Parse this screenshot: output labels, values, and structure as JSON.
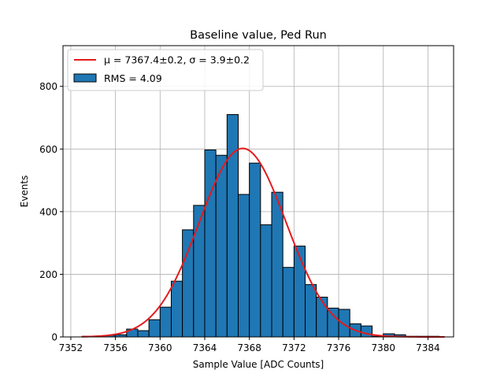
{
  "chart_data": {
    "type": "bar",
    "title": "Baseline value, Ped Run",
    "xlabel": "Sample Value [ADC Counts]",
    "ylabel": "Events",
    "xlim": [
      7351.3,
      7386.3
    ],
    "ylim": [
      0,
      930
    ],
    "grid": true,
    "legend_position": "top-left",
    "xticks": [
      7352,
      7356,
      7360,
      7364,
      7368,
      7372,
      7376,
      7380,
      7384
    ],
    "yticks": [
      0,
      200,
      400,
      600,
      800
    ],
    "bin_width": 1,
    "bins": [
      {
        "x0": 7353,
        "count": 2
      },
      {
        "x0": 7354,
        "count": 2
      },
      {
        "x0": 7355,
        "count": 5
      },
      {
        "x0": 7356,
        "count": 7
      },
      {
        "x0": 7357,
        "count": 25
      },
      {
        "x0": 7358,
        "count": 20
      },
      {
        "x0": 7359,
        "count": 55
      },
      {
        "x0": 7360,
        "count": 95
      },
      {
        "x0": 7361,
        "count": 178
      },
      {
        "x0": 7362,
        "count": 342
      },
      {
        "x0": 7363,
        "count": 420
      },
      {
        "x0": 7364,
        "count": 597
      },
      {
        "x0": 7365,
        "count": 580
      },
      {
        "x0": 7366,
        "count": 710
      },
      {
        "x0": 7367,
        "count": 455
      },
      {
        "x0": 7368,
        "count": 555
      },
      {
        "x0": 7369,
        "count": 358
      },
      {
        "x0": 7370,
        "count": 462
      },
      {
        "x0": 7371,
        "count": 222
      },
      {
        "x0": 7372,
        "count": 290
      },
      {
        "x0": 7373,
        "count": 167
      },
      {
        "x0": 7374,
        "count": 127
      },
      {
        "x0": 7375,
        "count": 92
      },
      {
        "x0": 7376,
        "count": 88
      },
      {
        "x0": 7377,
        "count": 42
      },
      {
        "x0": 7378,
        "count": 35
      },
      {
        "x0": 7379,
        "count": 2
      },
      {
        "x0": 7380,
        "count": 10
      },
      {
        "x0": 7381,
        "count": 7
      },
      {
        "x0": 7382,
        "count": 2
      },
      {
        "x0": 7383,
        "count": 2
      },
      {
        "x0": 7384,
        "count": 2
      }
    ],
    "fit": {
      "type": "gaussian",
      "mu": 7367.4,
      "sigma": 3.9,
      "peak": 602,
      "x_range": [
        7353,
        7385.5
      ]
    },
    "series": [
      {
        "name": "μ = 7367.4±0.2, σ = 3.9±0.2",
        "kind": "line",
        "color": "#e41a1c"
      },
      {
        "name": "RMS = 4.09",
        "kind": "bar",
        "color": "#1f77b4"
      }
    ]
  }
}
